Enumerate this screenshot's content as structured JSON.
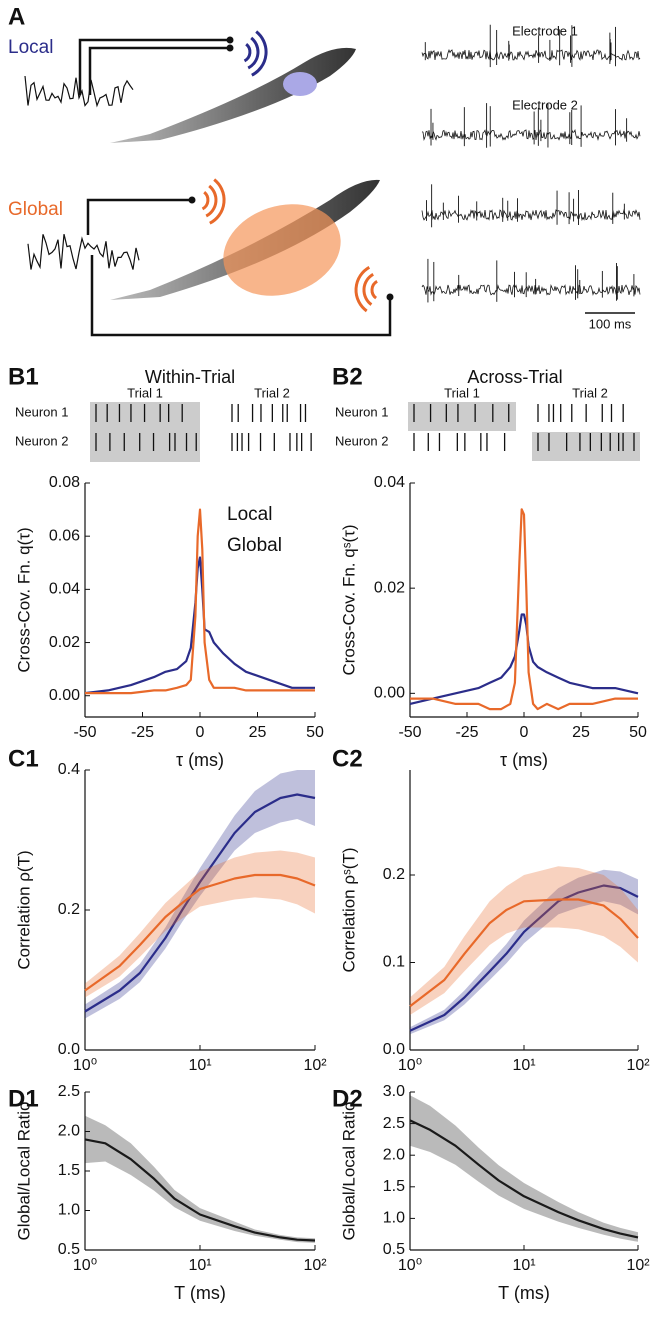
{
  "panel_labels": [
    "A",
    "B1",
    "B2",
    "C1",
    "C2",
    "D1",
    "D2"
  ],
  "panel_a": {
    "local": "Local",
    "global": "Global",
    "electrode_1": "Electrode 1",
    "electrode_2": "Electrode 2",
    "scale_bar": "100 ms"
  },
  "raster": [
    {
      "title": "Within-Trial",
      "trial_1": "Trial 1",
      "trial_2": "Trial 2",
      "neuron_1": "Neuron 1",
      "neuron_2": "Neuron 2"
    },
    {
      "title": "Across-Trial",
      "trial_1": "Trial 1",
      "trial_2": "Trial 2",
      "neuron_1": "Neuron 1",
      "neuron_2": "Neuron 2"
    }
  ],
  "chart_data": [
    {
      "type": "line",
      "xlabel": "τ (ms)",
      "ylabel": "Cross-Cov. Fn. q(τ)",
      "x": [
        -50,
        -40,
        -30,
        -20,
        -15,
        -10,
        -6,
        -4,
        -2,
        -1,
        0,
        1,
        2,
        4,
        6,
        10,
        15,
        20,
        30,
        40,
        50
      ],
      "series": [
        {
          "name": "Local",
          "color": "#2b2d8a",
          "values": [
            0.001,
            0.002,
            0.004,
            0.007,
            0.009,
            0.01,
            0.013,
            0.018,
            0.035,
            0.048,
            0.052,
            0.04,
            0.025,
            0.024,
            0.02,
            0.016,
            0.012,
            0.009,
            0.006,
            0.003,
            0.003
          ]
        },
        {
          "name": "Global",
          "color": "#e8692a",
          "values": [
            0.001,
            0.001,
            0.001,
            0.002,
            0.002,
            0.003,
            0.004,
            0.006,
            0.03,
            0.06,
            0.07,
            0.055,
            0.02,
            0.006,
            0.003,
            0.003,
            0.003,
            0.002,
            0.002,
            0.002,
            0.002
          ]
        }
      ],
      "xlim": [
        -50,
        50
      ],
      "xticks": [
        -50,
        -25,
        0,
        25,
        50
      ],
      "ylim": [
        -0.008,
        0.08
      ],
      "yticks": [
        {
          "value": 0,
          "label": "0.00"
        },
        0.02,
        0.04,
        0.06,
        0.08
      ]
    },
    {
      "type": "line",
      "xlabel": "τ (ms)",
      "ylabel": "Cross-Cov. Fn. qˢ(τ)",
      "x": [
        -50,
        -40,
        -30,
        -20,
        -15,
        -10,
        -6,
        -4,
        -2,
        -1,
        0,
        1,
        2,
        4,
        6,
        10,
        15,
        20,
        30,
        40,
        50
      ],
      "series": [
        {
          "color": "#2b2d8a",
          "values": [
            -0.002,
            -0.001,
            0.0,
            0.001,
            0.002,
            0.003,
            0.005,
            0.007,
            0.012,
            0.015,
            0.015,
            0.013,
            0.009,
            0.006,
            0.005,
            0.004,
            0.003,
            0.002,
            0.001,
            0.001,
            0.0
          ]
        },
        {
          "color": "#e8692a",
          "values": [
            -0.001,
            -0.001,
            -0.002,
            -0.002,
            -0.003,
            -0.003,
            -0.002,
            0.002,
            0.025,
            0.035,
            0.034,
            0.02,
            0.004,
            -0.002,
            -0.003,
            -0.002,
            -0.003,
            -0.002,
            -0.002,
            -0.001,
            -0.001
          ]
        }
      ],
      "xlim": [
        -50,
        50
      ],
      "xticks": [
        -50,
        -25,
        0,
        25,
        50
      ],
      "ylim": [
        -0.0045,
        0.04
      ],
      "yticks": [
        {
          "value": 0,
          "label": "0.00"
        },
        0.02,
        0.04
      ]
    },
    {
      "type": "line",
      "xscale": "log",
      "ylabel": "Correlation  ρ(T)",
      "x": [
        1,
        2,
        3,
        5,
        7,
        10,
        20,
        30,
        50,
        70,
        100
      ],
      "series": [
        {
          "color": "#2b2d8a",
          "values": [
            0.055,
            0.085,
            0.11,
            0.16,
            0.2,
            0.24,
            0.31,
            0.34,
            0.36,
            0.365,
            0.36
          ],
          "lower": [
            0.045,
            0.073,
            0.097,
            0.145,
            0.183,
            0.22,
            0.285,
            0.31,
            0.325,
            0.33,
            0.32
          ],
          "upper": [
            0.065,
            0.097,
            0.123,
            0.175,
            0.217,
            0.26,
            0.335,
            0.37,
            0.395,
            0.4,
            0.4
          ]
        },
        {
          "color": "#e8692a",
          "values": [
            0.085,
            0.12,
            0.15,
            0.19,
            0.21,
            0.23,
            0.245,
            0.25,
            0.25,
            0.245,
            0.235
          ],
          "lower": [
            0.075,
            0.105,
            0.133,
            0.17,
            0.188,
            0.205,
            0.215,
            0.218,
            0.215,
            0.208,
            0.195
          ],
          "upper": [
            0.095,
            0.135,
            0.167,
            0.21,
            0.232,
            0.255,
            0.275,
            0.282,
            0.285,
            0.282,
            0.275
          ]
        }
      ],
      "xlim": [
        1,
        100
      ],
      "xticks": [
        {
          "value": 1,
          "label": "10⁰"
        },
        {
          "value": 10,
          "label": "10¹"
        },
        {
          "value": 100,
          "label": "10²"
        }
      ],
      "ylim": [
        0,
        0.4
      ],
      "yticks": [
        {
          "value": 0,
          "label": "0.0"
        },
        0.2,
        0.4
      ]
    },
    {
      "type": "line",
      "xscale": "log",
      "ylabel": "Correlation  ρˢ(T)",
      "x": [
        1,
        2,
        3,
        5,
        7,
        10,
        20,
        30,
        50,
        70,
        100
      ],
      "series": [
        {
          "color": "#2b2d8a",
          "values": [
            0.022,
            0.04,
            0.06,
            0.09,
            0.11,
            0.135,
            0.17,
            0.18,
            0.188,
            0.185,
            0.175
          ],
          "lower": [
            0.018,
            0.034,
            0.052,
            0.08,
            0.099,
            0.122,
            0.155,
            0.163,
            0.17,
            0.166,
            0.155
          ],
          "upper": [
            0.026,
            0.046,
            0.068,
            0.1,
            0.121,
            0.148,
            0.185,
            0.197,
            0.206,
            0.204,
            0.195
          ]
        },
        {
          "color": "#e8692a",
          "values": [
            0.05,
            0.08,
            0.11,
            0.145,
            0.16,
            0.17,
            0.172,
            0.172,
            0.165,
            0.15,
            0.128
          ],
          "lower": [
            0.04,
            0.065,
            0.09,
            0.12,
            0.133,
            0.14,
            0.14,
            0.138,
            0.13,
            0.118,
            0.1
          ],
          "upper": [
            0.06,
            0.095,
            0.13,
            0.17,
            0.187,
            0.2,
            0.21,
            0.208,
            0.2,
            0.185,
            0.16
          ]
        }
      ],
      "xlim": [
        1,
        100
      ],
      "xticks": [
        {
          "value": 1,
          "label": "10⁰"
        },
        {
          "value": 10,
          "label": "10¹"
        },
        {
          "value": 100,
          "label": "10²"
        }
      ],
      "ylim": [
        0,
        0.32
      ],
      "yticks": [
        {
          "value": 0,
          "label": "0.0"
        },
        0.1,
        0.2
      ]
    },
    {
      "type": "line",
      "xscale": "log",
      "xlabel": "T (ms)",
      "ylabel": "Global/Local Ratio",
      "x": [
        1,
        1.5,
        2.5,
        4,
        6,
        10,
        20,
        30,
        50,
        70,
        100
      ],
      "series": [
        {
          "color": "#1a1a1a",
          "values": [
            1.9,
            1.85,
            1.65,
            1.4,
            1.15,
            0.95,
            0.8,
            0.72,
            0.66,
            0.63,
            0.62
          ],
          "lower": [
            1.6,
            1.62,
            1.45,
            1.25,
            1.04,
            0.87,
            0.74,
            0.68,
            0.63,
            0.6,
            0.59
          ],
          "upper": [
            2.2,
            2.08,
            1.85,
            1.55,
            1.26,
            1.03,
            0.86,
            0.76,
            0.69,
            0.66,
            0.65
          ]
        }
      ],
      "xlim": [
        1,
        100
      ],
      "xticks": [
        {
          "value": 1,
          "label": "10⁰"
        },
        {
          "value": 10,
          "label": "10¹"
        },
        {
          "value": 100,
          "label": "10²"
        }
      ],
      "ylim": [
        0.5,
        2.5
      ],
      "yticks": [
        0.5,
        {
          "value": 1,
          "label": "1.0"
        },
        1.5,
        {
          "value": 2,
          "label": "2.0"
        },
        2.5
      ]
    },
    {
      "type": "line",
      "xscale": "log",
      "xlabel": "T (ms)",
      "ylabel": "Global/Local Ratio",
      "x": [
        1,
        1.5,
        2.5,
        4,
        6,
        10,
        20,
        30,
        50,
        70,
        100
      ],
      "series": [
        {
          "color": "#1a1a1a",
          "values": [
            2.55,
            2.4,
            2.15,
            1.85,
            1.6,
            1.35,
            1.1,
            0.97,
            0.83,
            0.76,
            0.7
          ],
          "lower": [
            2.15,
            2.05,
            1.85,
            1.58,
            1.36,
            1.15,
            0.95,
            0.85,
            0.74,
            0.68,
            0.63
          ],
          "upper": [
            2.95,
            2.78,
            2.47,
            2.12,
            1.84,
            1.56,
            1.26,
            1.1,
            0.93,
            0.85,
            0.78
          ]
        }
      ],
      "xlim": [
        1,
        100
      ],
      "xticks": [
        {
          "value": 1,
          "label": "10⁰"
        },
        {
          "value": 10,
          "label": "10¹"
        },
        {
          "value": 100,
          "label": "10²"
        }
      ],
      "ylim": [
        0.5,
        3.0
      ],
      "yticks": [
        0.5,
        {
          "value": 1,
          "label": "1.0"
        },
        1.5,
        {
          "value": 2,
          "label": "2.0"
        },
        2.5,
        {
          "value": 3,
          "label": "3.0"
        }
      ]
    }
  ]
}
